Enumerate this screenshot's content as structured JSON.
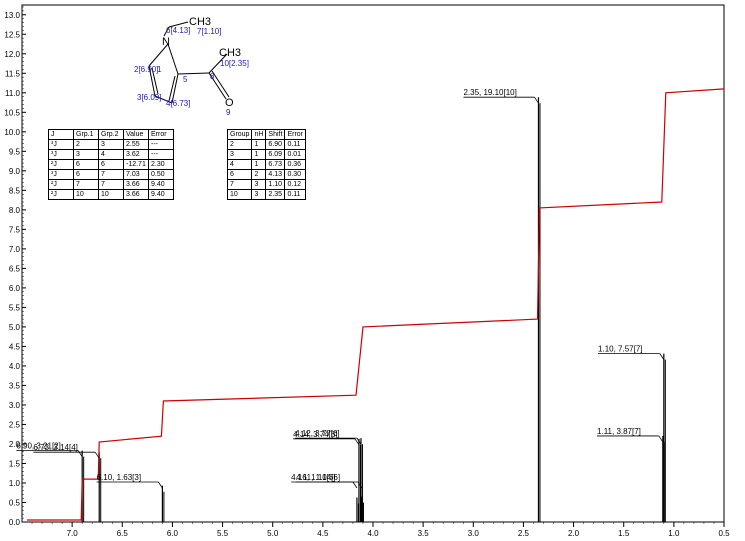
{
  "chart_data": {
    "type": "line",
    "title": "",
    "xlabel": "",
    "ylabel": "",
    "xlim": [
      7.5,
      0.5
    ],
    "ylim": [
      0.0,
      13.25
    ],
    "x_ticks": [
      "7.0",
      "6.5",
      "6.0",
      "5.5",
      "5.0",
      "4.5",
      "4.0",
      "3.5",
      "3.0",
      "2.5",
      "2.0",
      "1.5",
      "1.0",
      "0.5"
    ],
    "y_ticks": [
      "0.0",
      "0.5",
      "1.0",
      "1.5",
      "2.0",
      "2.5",
      "3.0",
      "3.5",
      "4.0",
      "4.5",
      "5.0",
      "5.5",
      "6.0",
      "6.5",
      "7.0",
      "7.5",
      "8.0",
      "8.5",
      "9.0",
      "9.5",
      "10.0",
      "10.5",
      "11.0",
      "11.5",
      "12.0",
      "12.5",
      "13.0"
    ],
    "peaks": [
      {
        "x": 6.9,
        "y": 3.21,
        "label": "6.90, 3.21[2]"
      },
      {
        "x": 6.73,
        "y": 3.14,
        "label": "6.73, 3.14[4]"
      },
      {
        "x": 6.1,
        "y": 1.63,
        "label": "6.10, 1.63[3]"
      },
      {
        "x": 4.12,
        "y": 3.77,
        "label": "4.12, 3.77[6]"
      },
      {
        "x": 4.14,
        "y": 3.74,
        "label": "4.14, 3.74[6]"
      },
      {
        "x": 4.11,
        "y": 1.14,
        "label": "4.11, 1.14[6]"
      },
      {
        "x": 4.16,
        "y": 1.1,
        "label": "4.16, 1.10[6]"
      },
      {
        "x": 2.35,
        "y": 19.1,
        "label": "2.35, 19.10[10]"
      },
      {
        "x": 1.1,
        "y": 7.57,
        "label": "1.10, 7.57[7]"
      },
      {
        "x": 1.11,
        "y": 3.87,
        "label": "1.11, 3.87[7]"
      }
    ],
    "integral_curve": {
      "x": [
        7.45,
        6.91,
        6.9,
        6.74,
        6.73,
        6.11,
        6.09,
        4.17,
        4.1,
        2.36,
        2.34,
        1.12,
        1.08,
        0.5
      ],
      "y": [
        0.05,
        0.05,
        1.1,
        1.1,
        2.05,
        2.2,
        3.1,
        3.25,
        5.0,
        5.2,
        8.05,
        8.2,
        11.0,
        11.1
      ]
    },
    "colors": {
      "spectrum": "#000000",
      "integral": "#cc0000",
      "atom_labels": "#1a1ab8"
    }
  },
  "structure": {
    "atoms": {
      "n": "N",
      "ch3_ethyl": "CH3",
      "ch3_acetyl": "CH3",
      "oxygen": "O"
    },
    "atom_labels": {
      "a6": "6[4.13]",
      "a7": "7[1.10]",
      "a10": "10[2.35]",
      "a2": "2[6.90]",
      "a1": "1",
      "a5": "5",
      "a8": "8",
      "a3": "3[6.09]",
      "a4": "4[6.73]",
      "a9": "9"
    }
  },
  "j_table": {
    "headers": [
      "J",
      "Grp.1",
      "Grp.2",
      "Value",
      "Error"
    ],
    "rows": [
      [
        "³J",
        "2",
        "3",
        "2.55",
        "---"
      ],
      [
        "³J",
        "3",
        "4",
        "3.62",
        "---"
      ],
      [
        "²J",
        "6",
        "6",
        "-12.71",
        "2.30"
      ],
      [
        "³J",
        "6",
        "7",
        "7.03",
        "0.50"
      ],
      [
        "²J",
        "7",
        "7",
        "3.66",
        "9.40"
      ],
      [
        "²J",
        "10",
        "10",
        "3.66",
        "9.40"
      ]
    ]
  },
  "shift_table": {
    "headers": [
      "Group",
      "nH",
      "Shift",
      "Error"
    ],
    "rows": [
      [
        "2",
        "1",
        "6.90",
        "0.11"
      ],
      [
        "3",
        "1",
        "6.09",
        "0.01"
      ],
      [
        "4",
        "1",
        "6.73",
        "0.36"
      ],
      [
        "6",
        "2",
        "4.13",
        "0.30"
      ],
      [
        "7",
        "3",
        "1.10",
        "0.12"
      ],
      [
        "10",
        "3",
        "2.35",
        "0.11"
      ]
    ]
  }
}
